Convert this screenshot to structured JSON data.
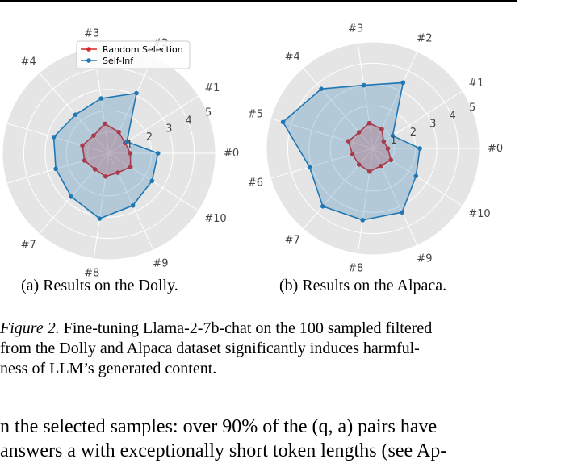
{
  "chart_data": [
    {
      "type": "radar",
      "axes": [
        "#0",
        "#1",
        "#2",
        "#3",
        "#4",
        "#5",
        "#6",
        "#7",
        "#8",
        "#9",
        "#10"
      ],
      "r_ticks": [
        "1",
        "2",
        "3",
        "4",
        "5"
      ],
      "rlim": [
        0,
        5
      ],
      "legend": {
        "placement": "top-center",
        "entries": [
          "Random Selection",
          "Self-Inf"
        ]
      },
      "series": [
        {
          "name": "Random Selection",
          "color": "#d62728",
          "values": [
            1.0,
            0.9,
            1.1,
            1.4,
            1.1,
            1.3,
            1.2,
            1.0,
            1.1,
            1.0,
            1.2
          ]
        },
        {
          "name": "Self-Inf",
          "color": "#1f77b4",
          "values": [
            2.3,
            1.0,
            3.1,
            2.6,
            2.4,
            2.7,
            2.6,
            2.7,
            3.1,
            2.7,
            2.4
          ]
        }
      ]
    },
    {
      "type": "radar",
      "axes": [
        "#0",
        "#1",
        "#2",
        "#3",
        "#4",
        "#5",
        "#6",
        "#7",
        "#8",
        "#9",
        "#10"
      ],
      "r_ticks": [
        "1",
        "2",
        "3",
        "4",
        "5"
      ],
      "rlim": [
        0,
        5
      ],
      "series": [
        {
          "name": "Random Selection",
          "color": "#d62728",
          "values": [
            0.7,
            0.6,
            1.0,
            1.2,
            1.0,
            1.2,
            1.0,
            1.0,
            1.1,
            0.9,
            1.0
          ]
        },
        {
          "name": "Self-Inf",
          "color": "#1f77b4",
          "values": [
            2.2,
            1.1,
            3.4,
            3.0,
            3.7,
            4.4,
            3.1,
            3.6,
            3.4,
            3.3,
            2.4
          ]
        }
      ]
    }
  ],
  "subcaptions": [
    "(a) Results on the Dolly.",
    "(b) Results on the Alpaca."
  ],
  "caption": {
    "lead": "Figure 2.",
    "lines": [
      " Fine-tuning Llama-2-7b-chat on the 100 sampled filtered",
      "from the Dolly and Alpaca dataset significantly induces harmful-",
      "ness of LLM’s generated content."
    ]
  },
  "body": {
    "line1": "n the selected samples: over 90% of the (q, a) pairs have",
    "line2": "answers a with exceptionally short token lengths (see Ap-"
  }
}
